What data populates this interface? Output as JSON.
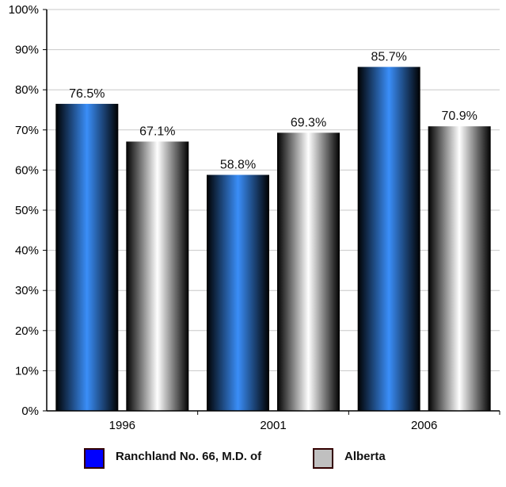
{
  "chart_data": {
    "type": "bar",
    "categories": [
      "1996",
      "2001",
      "2006"
    ],
    "series": [
      {
        "name": "Ranchland No. 66, M.D. of",
        "values": [
          76.5,
          58.8,
          85.7
        ],
        "color": "#3399ff"
      },
      {
        "name": "Alberta",
        "values": [
          67.1,
          69.3,
          70.9
        ],
        "color": "#c0c0c0"
      }
    ],
    "data_labels": [
      [
        "76.5%",
        "58.8%",
        "85.7%"
      ],
      [
        "67.1%",
        "69.3%",
        "70.9%"
      ]
    ],
    "y_ticks": [
      "0%",
      "10%",
      "20%",
      "30%",
      "40%",
      "50%",
      "60%",
      "70%",
      "80%",
      "90%",
      "100%"
    ],
    "ylim": [
      0,
      100
    ],
    "grid": true,
    "legend_position": "bottom"
  }
}
